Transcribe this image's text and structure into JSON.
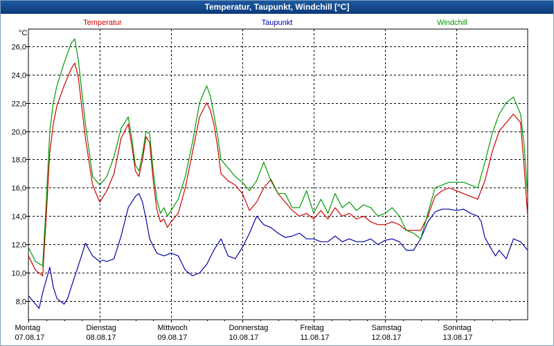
{
  "window": {
    "title": "Temperatur, Taupunkt, Windchill [°C]"
  },
  "chart_data": {
    "type": "line",
    "title": "Temperatur, Taupunkt, Windchill [°C]",
    "ylabel": "°C",
    "ylim": [
      6.7,
      27.2
    ],
    "yticks": [
      8.0,
      10.0,
      12.0,
      14.0,
      16.0,
      18.0,
      20.0,
      22.0,
      24.0,
      26.0
    ],
    "ytick_labels": [
      "8,0",
      "10,0",
      "12,0",
      "14,0",
      "16,0",
      "18,0",
      "20,0",
      "22,0",
      "24,0",
      "26,0"
    ],
    "xlim": [
      0,
      7
    ],
    "x_days": [
      {
        "x": 0,
        "day": "Montag",
        "date": "07.08.17"
      },
      {
        "x": 1,
        "day": "Dienstag",
        "date": "08.08.17"
      },
      {
        "x": 2,
        "day": "Mittwoch",
        "date": "09.08.17"
      },
      {
        "x": 3,
        "day": "Donnerstag",
        "date": "10.08.17"
      },
      {
        "x": 4,
        "day": "Freitag",
        "date": "11.08.17"
      },
      {
        "x": 5,
        "day": "Samstag",
        "date": "12.08.17"
      },
      {
        "x": 6,
        "day": "Sonntag",
        "date": "13.08.17"
      }
    ],
    "grid": true,
    "series": [
      {
        "name": "Temperatur",
        "color": "#cc0000",
        "x": [
          0,
          0.1,
          0.2,
          0.25,
          0.3,
          0.35,
          0.4,
          0.5,
          0.6,
          0.65,
          0.7,
          0.8,
          0.9,
          1.0,
          1.1,
          1.2,
          1.3,
          1.4,
          1.45,
          1.5,
          1.55,
          1.6,
          1.65,
          1.7,
          1.75,
          1.8,
          1.85,
          1.9,
          1.95,
          2.0,
          2.1,
          2.2,
          2.3,
          2.4,
          2.5,
          2.55,
          2.6,
          2.65,
          2.7,
          2.8,
          2.9,
          3.0,
          3.1,
          3.2,
          3.3,
          3.4,
          3.5,
          3.6,
          3.7,
          3.8,
          3.9,
          4.0,
          4.1,
          4.2,
          4.3,
          4.4,
          4.5,
          4.6,
          4.7,
          4.8,
          4.9,
          5.0,
          5.1,
          5.2,
          5.3,
          5.4,
          5.5,
          5.6,
          5.7,
          5.8,
          5.9,
          6.0,
          6.1,
          6.2,
          6.3,
          6.4,
          6.5,
          6.6,
          6.7,
          6.8,
          6.9,
          6.95,
          7.0
        ],
        "values": [
          11.2,
          10.2,
          9.8,
          14.0,
          18.5,
          20.5,
          21.8,
          23.2,
          24.4,
          24.8,
          23.8,
          19.5,
          16.2,
          15.0,
          15.8,
          17.0,
          19.5,
          20.5,
          19.0,
          17.2,
          16.8,
          18.0,
          19.6,
          19.2,
          16.5,
          14.5,
          13.6,
          13.8,
          13.2,
          13.6,
          14.2,
          16.0,
          18.5,
          21.0,
          22.0,
          21.5,
          20.5,
          19.0,
          17.0,
          16.5,
          16.2,
          15.6,
          14.4,
          15.0,
          16.0,
          16.6,
          15.6,
          15.0,
          14.4,
          14.0,
          14.2,
          13.8,
          14.4,
          13.8,
          14.6,
          14.0,
          14.2,
          13.8,
          14.0,
          13.6,
          13.4,
          13.4,
          13.6,
          13.4,
          13.0,
          13.0,
          13.0,
          14.0,
          15.4,
          15.8,
          16.0,
          15.8,
          15.6,
          15.4,
          15.2,
          16.5,
          18.5,
          20.0,
          20.6,
          21.2,
          20.6,
          17.5,
          14.0
        ]
      },
      {
        "name": "Taupunkt",
        "color": "#0000aa",
        "x": [
          0,
          0.1,
          0.15,
          0.2,
          0.3,
          0.35,
          0.4,
          0.5,
          0.55,
          0.6,
          0.7,
          0.8,
          0.9,
          1.0,
          1.05,
          1.1,
          1.2,
          1.3,
          1.4,
          1.5,
          1.55,
          1.6,
          1.65,
          1.7,
          1.8,
          1.9,
          2.0,
          2.1,
          2.2,
          2.3,
          2.4,
          2.5,
          2.6,
          2.7,
          2.8,
          2.9,
          3.0,
          3.1,
          3.2,
          3.3,
          3.4,
          3.5,
          3.6,
          3.7,
          3.8,
          3.9,
          4.0,
          4.1,
          4.2,
          4.3,
          4.4,
          4.5,
          4.6,
          4.7,
          4.8,
          4.9,
          5.0,
          5.1,
          5.2,
          5.3,
          5.4,
          5.5,
          5.6,
          5.7,
          5.8,
          5.9,
          6.0,
          6.1,
          6.2,
          6.3,
          6.35,
          6.4,
          6.5,
          6.55,
          6.6,
          6.7,
          6.8,
          6.9,
          6.95,
          7.0
        ],
        "values": [
          8.4,
          7.8,
          7.5,
          8.6,
          10.4,
          9.0,
          8.2,
          7.8,
          8.2,
          9.0,
          10.5,
          12.1,
          11.2,
          10.8,
          10.9,
          10.8,
          11.0,
          12.6,
          14.6,
          15.4,
          15.6,
          15.0,
          13.8,
          12.4,
          11.4,
          11.2,
          11.4,
          11.2,
          10.2,
          9.8,
          10.0,
          10.6,
          11.6,
          12.4,
          11.2,
          11.0,
          11.8,
          12.8,
          14.0,
          13.4,
          13.2,
          12.8,
          12.5,
          12.6,
          12.8,
          12.4,
          12.4,
          12.2,
          12.2,
          12.6,
          12.2,
          12.4,
          12.2,
          12.2,
          12.4,
          12.0,
          12.3,
          12.4,
          12.2,
          11.6,
          11.6,
          12.4,
          13.6,
          14.3,
          14.5,
          14.5,
          14.4,
          14.5,
          14.2,
          14.0,
          13.6,
          12.5,
          11.6,
          11.2,
          11.6,
          11.0,
          12.4,
          12.2,
          11.9,
          11.6
        ]
      },
      {
        "name": "Windchill",
        "color": "#009900",
        "x": [
          0,
          0.1,
          0.2,
          0.25,
          0.3,
          0.35,
          0.4,
          0.5,
          0.6,
          0.65,
          0.7,
          0.8,
          0.9,
          1.0,
          1.1,
          1.2,
          1.3,
          1.4,
          1.45,
          1.5,
          1.55,
          1.6,
          1.65,
          1.7,
          1.75,
          1.8,
          1.85,
          1.9,
          1.95,
          2.0,
          2.1,
          2.2,
          2.3,
          2.4,
          2.5,
          2.55,
          2.6,
          2.65,
          2.7,
          2.8,
          2.9,
          3.0,
          3.1,
          3.2,
          3.3,
          3.4,
          3.5,
          3.6,
          3.7,
          3.8,
          3.9,
          4.0,
          4.1,
          4.2,
          4.3,
          4.4,
          4.5,
          4.6,
          4.7,
          4.8,
          4.9,
          5.0,
          5.1,
          5.2,
          5.3,
          5.4,
          5.5,
          5.6,
          5.7,
          5.8,
          5.9,
          6.0,
          6.1,
          6.2,
          6.3,
          6.4,
          6.5,
          6.6,
          6.7,
          6.8,
          6.9,
          6.95,
          7.0
        ],
        "values": [
          11.8,
          10.8,
          10.5,
          15.0,
          20.0,
          22.0,
          23.2,
          24.8,
          26.2,
          26.5,
          25.0,
          20.5,
          16.8,
          16.2,
          16.8,
          18.2,
          20.2,
          21.0,
          19.5,
          17.6,
          17.2,
          18.4,
          20.0,
          19.8,
          17.2,
          15.2,
          14.2,
          14.6,
          14.0,
          14.4,
          15.2,
          16.8,
          19.2,
          22.0,
          23.2,
          22.5,
          21.2,
          19.8,
          18.0,
          17.4,
          16.8,
          16.4,
          15.8,
          16.5,
          17.8,
          16.5,
          15.6,
          15.6,
          14.6,
          14.6,
          15.8,
          14.2,
          15.2,
          14.2,
          15.6,
          14.6,
          15.0,
          14.4,
          14.8,
          14.6,
          14.0,
          14.2,
          14.6,
          14.0,
          13.0,
          12.8,
          12.4,
          14.2,
          16.0,
          16.2,
          16.4,
          16.4,
          16.4,
          16.2,
          16.0,
          17.8,
          19.8,
          21.2,
          22.0,
          22.4,
          21.2,
          19.0,
          15.4
        ]
      }
    ]
  }
}
